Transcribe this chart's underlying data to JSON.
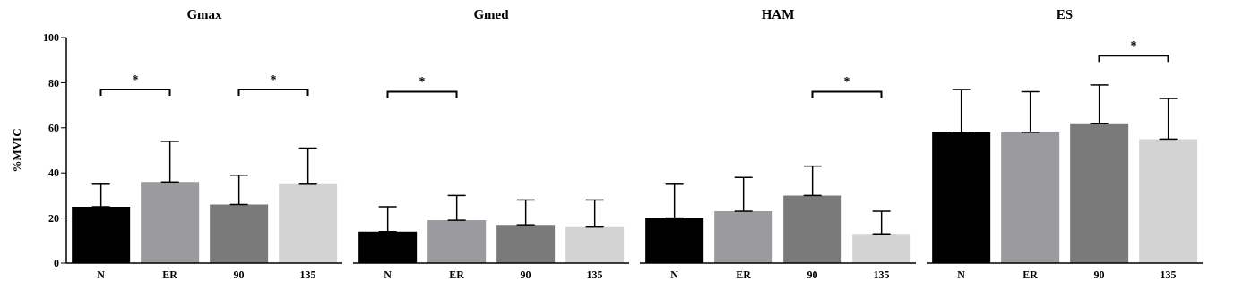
{
  "chart_data": [
    {
      "type": "bar",
      "title": "Gmax",
      "ylabel": "%MVIC",
      "categories": [
        "N",
        "ER",
        "90",
        "135"
      ],
      "values": [
        25,
        36,
        26,
        35
      ],
      "colors": [
        "#000000",
        "#9b9b9f",
        "#7a7a7a",
        "#d3d3d3"
      ],
      "errors": [
        [
          25,
          35
        ],
        [
          36,
          54
        ],
        [
          26,
          39
        ],
        [
          35,
          51
        ]
      ],
      "ylim": [
        0,
        100
      ],
      "yticks": [
        0,
        20,
        40,
        60,
        80,
        100
      ],
      "annotations": [
        "*",
        "*"
      ]
    },
    {
      "type": "bar",
      "title": "Gmed",
      "categories": [
        "N",
        "ER",
        "90",
        "135"
      ],
      "values": [
        14,
        19,
        17,
        16
      ],
      "colors": [
        "#000000",
        "#9b9b9f",
        "#7a7a7a",
        "#d3d3d3"
      ],
      "errors": [
        [
          14,
          25
        ],
        [
          19,
          30
        ],
        [
          17,
          28
        ],
        [
          16,
          28
        ]
      ],
      "ylim": [
        0,
        100
      ],
      "yticks": [
        0,
        20,
        40,
        60,
        80,
        100
      ],
      "tick_labels": "x",
      "annotations": [
        "*"
      ]
    },
    {
      "type": "bar",
      "title": "HAM",
      "categories": [
        "N",
        "ER",
        "90",
        "135"
      ],
      "values": [
        20,
        23,
        30,
        13
      ],
      "colors": [
        "#000000",
        "#9b9b9f",
        "#7a7a7a",
        "#d3d3d3"
      ],
      "errors": [
        [
          20,
          35
        ],
        [
          23,
          38
        ],
        [
          30,
          43
        ],
        [
          13,
          23
        ]
      ],
      "ylim": [
        0,
        100
      ],
      "yticks": [
        0,
        20,
        40,
        60,
        80,
        100
      ],
      "tick_labels": "x",
      "annotations": [
        "*"
      ]
    },
    {
      "type": "bar",
      "title": "ES",
      "categories": [
        "N",
        "ER",
        "90",
        "135"
      ],
      "values": [
        58,
        58,
        62,
        55
      ],
      "colors": [
        "#000000",
        "#9b9b9f",
        "#7a7a7a",
        "#d3d3d3"
      ],
      "errors": [
        [
          58,
          77
        ],
        [
          58,
          76
        ],
        [
          62,
          79
        ],
        [
          55,
          73
        ]
      ],
      "ylim": [
        0,
        100
      ],
      "yticks": [
        0,
        20,
        40,
        60,
        80,
        100
      ],
      "tick_labels": "x",
      "annotations": [
        "*"
      ]
    }
  ]
}
